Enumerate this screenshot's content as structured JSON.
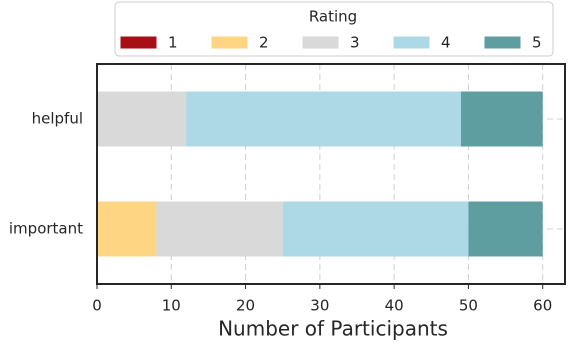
{
  "chart_data": {
    "type": "stacked-barh",
    "xlabel": "Number of Participants",
    "legend_title": "Rating",
    "categories": [
      "helpful",
      "important"
    ],
    "series": [
      {
        "name": "1",
        "color": "#a50f15",
        "values": [
          0,
          0
        ]
      },
      {
        "name": "2",
        "color": "#fdd583",
        "values": [
          0,
          8
        ]
      },
      {
        "name": "3",
        "color": "#d9d9d9",
        "values": [
          12,
          17
        ]
      },
      {
        "name": "4",
        "color": "#add8e6",
        "values": [
          37,
          25
        ]
      },
      {
        "name": "5",
        "color": "#5f9ea0",
        "values": [
          11,
          10
        ]
      }
    ],
    "xlim": [
      0,
      63
    ],
    "xticks": [
      0,
      10,
      20,
      30,
      40,
      50,
      60
    ],
    "grid": true,
    "legend": "top"
  }
}
